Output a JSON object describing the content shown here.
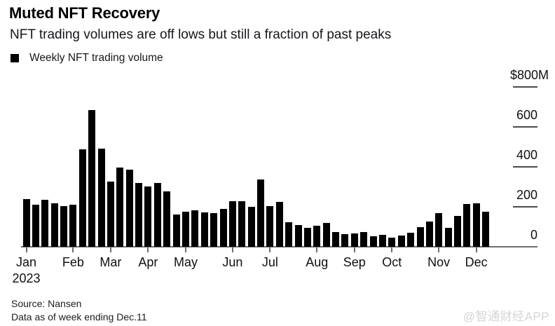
{
  "header": {
    "title": "Muted NFT Recovery",
    "subtitle": "NFT trading volumes are off lows but still a fraction of past peaks"
  },
  "legend": {
    "marker_icon": "black-square",
    "label": "Weekly NFT trading volume"
  },
  "chart_data": {
    "type": "bar",
    "title": "Muted NFT Recovery",
    "series_name": "Weekly NFT trading volume",
    "unit": "USD millions",
    "bar_color": "#000000",
    "grid": false,
    "y_axis": {
      "position": "right",
      "ylim": [
        0,
        800
      ],
      "tick_values": [
        800,
        600,
        400,
        200,
        0
      ],
      "tick_labels": [
        "$800M",
        "600",
        "400",
        "200",
        "0"
      ]
    },
    "x_axis": {
      "tick_labels": [
        "Jan",
        "Feb",
        "Mar",
        "Apr",
        "May",
        "Jun",
        "Jul",
        "Aug",
        "Sep",
        "Oct",
        "Nov",
        "Dec"
      ],
      "year_label": "2023",
      "bars_per_month": [
        5,
        4,
        4,
        4,
        5,
        4,
        5,
        4,
        4,
        5,
        4,
        2
      ]
    },
    "values": [
      237,
      211,
      234,
      216,
      205,
      210,
      486,
      685,
      492,
      325,
      397,
      387,
      319,
      301,
      321,
      278,
      163,
      176,
      184,
      172,
      169,
      190,
      228,
      228,
      199,
      337,
      204,
      223,
      122,
      108,
      93,
      105,
      120,
      75,
      63,
      68,
      73,
      52,
      58,
      47,
      55,
      70,
      97,
      126,
      169,
      96,
      155,
      215,
      219,
      176
    ]
  },
  "footer": {
    "source": "Source: Nansen",
    "note": "Data as of week ending Dec.11"
  },
  "watermark": {
    "text": "@智通财经APP"
  }
}
